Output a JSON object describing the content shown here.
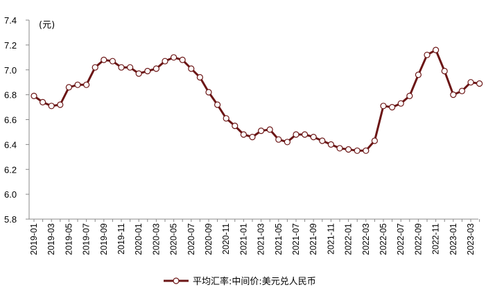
{
  "chart_data": {
    "type": "line",
    "unit_label": "(元)",
    "xlabel": "",
    "ylabel": "",
    "ylim": [
      5.8,
      7.4
    ],
    "y_ticks": [
      "5.8",
      "6.0",
      "6.2",
      "6.4",
      "6.6",
      "6.8",
      "7.0",
      "7.2",
      "7.4"
    ],
    "x_tick_labels": [
      "2019-01",
      "2019-03",
      "2019-05",
      "2019-07",
      "2019-09",
      "2019-11",
      "2020-01",
      "2020-03",
      "2020-05",
      "2020-07",
      "2020-09",
      "2020-11",
      "2021-01",
      "2021-03",
      "2021-05",
      "2021-07",
      "2021-09",
      "2021-11",
      "2022-01",
      "2022-03",
      "2022-05",
      "2022-07",
      "2022-09",
      "2022-11",
      "2023-01",
      "2023-03"
    ],
    "grid": false,
    "legend_position": "bottom",
    "colors": {
      "line": "#6b1515",
      "marker_fill": "#ffffff",
      "axis": "#888888"
    },
    "series": [
      {
        "name": "平均汇率:中间价:美元兑人民币",
        "x": [
          "2019-01",
          "2019-02",
          "2019-03",
          "2019-04",
          "2019-05",
          "2019-06",
          "2019-07",
          "2019-08",
          "2019-09",
          "2019-10",
          "2019-11",
          "2019-12",
          "2020-01",
          "2020-02",
          "2020-03",
          "2020-04",
          "2020-05",
          "2020-06",
          "2020-07",
          "2020-08",
          "2020-09",
          "2020-10",
          "2020-11",
          "2020-12",
          "2021-01",
          "2021-02",
          "2021-03",
          "2021-04",
          "2021-05",
          "2021-06",
          "2021-07",
          "2021-08",
          "2021-09",
          "2021-10",
          "2021-11",
          "2021-12",
          "2022-01",
          "2022-02",
          "2022-03",
          "2022-04",
          "2022-05",
          "2022-06",
          "2022-07",
          "2022-08",
          "2022-09",
          "2022-10",
          "2022-11",
          "2022-12",
          "2023-01",
          "2023-02",
          "2023-03",
          "2023-04"
        ],
        "values": [
          6.79,
          6.74,
          6.71,
          6.72,
          6.86,
          6.88,
          6.88,
          7.02,
          7.08,
          7.07,
          7.02,
          7.02,
          6.97,
          6.99,
          7.01,
          7.07,
          7.1,
          7.08,
          7.01,
          6.94,
          6.82,
          6.72,
          6.61,
          6.55,
          6.48,
          6.46,
          6.51,
          6.52,
          6.44,
          6.42,
          6.48,
          6.48,
          6.46,
          6.43,
          6.4,
          6.37,
          6.36,
          6.35,
          6.35,
          6.43,
          6.71,
          6.7,
          6.73,
          6.79,
          6.96,
          7.12,
          7.16,
          6.99,
          6.8,
          6.83,
          6.9,
          6.89
        ]
      }
    ]
  }
}
